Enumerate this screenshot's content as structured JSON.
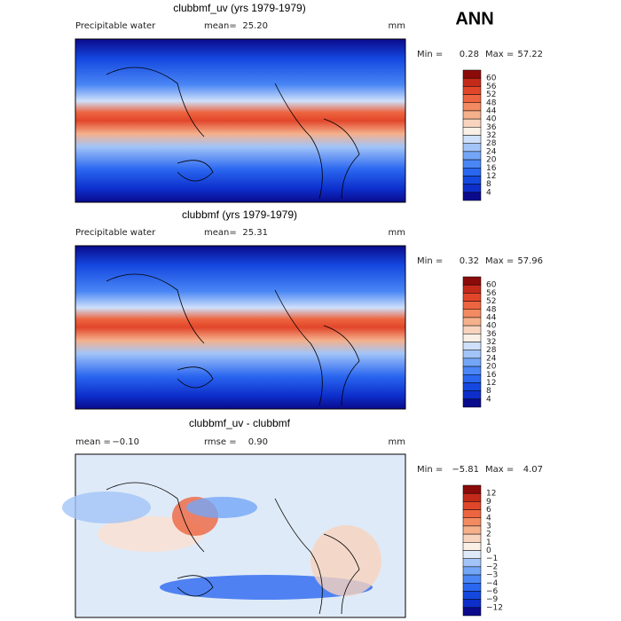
{
  "header": {
    "title": "ANN"
  },
  "panels": [
    {
      "title": "clubbmf_uv (yrs 1979-1979)",
      "left": "Precipitable water",
      "stats": [
        {
          "label": "mean=",
          "value": "25.20"
        }
      ],
      "units": "mm",
      "range": {
        "min_label": "Min =",
        "min": "0.28",
        "max_label": "Max =",
        "max": "57.22"
      },
      "colorbar": {
        "labels": [
          "60",
          "56",
          "52",
          "48",
          "44",
          "40",
          "36",
          "32",
          "28",
          "24",
          "20",
          "16",
          "12",
          "8",
          "4"
        ],
        "colors": [
          "#8b0a0a",
          "#c42a1a",
          "#e2462a",
          "#ed6540",
          "#f28a62",
          "#f5b08c",
          "#f8d3bd",
          "#fbf0e6",
          "#cfe0fa",
          "#a2c4f8",
          "#74a6f7",
          "#4a86f5",
          "#2a66f0",
          "#1448e0",
          "#0d2ecb",
          "#0a0a8c"
        ]
      }
    },
    {
      "title": "clubbmf (yrs 1979-1979)",
      "left": "Precipitable water",
      "stats": [
        {
          "label": "mean=",
          "value": "25.31"
        }
      ],
      "units": "mm",
      "range": {
        "min_label": "Min =",
        "min": "0.32",
        "max_label": "Max =",
        "max": "57.96"
      },
      "colorbar": {
        "labels": [
          "60",
          "56",
          "52",
          "48",
          "44",
          "40",
          "36",
          "32",
          "28",
          "24",
          "20",
          "16",
          "12",
          "8",
          "4"
        ],
        "colors": [
          "#8b0a0a",
          "#c42a1a",
          "#e2462a",
          "#ed6540",
          "#f28a62",
          "#f5b08c",
          "#f8d3bd",
          "#fbf0e6",
          "#cfe0fa",
          "#a2c4f8",
          "#74a6f7",
          "#4a86f5",
          "#2a66f0",
          "#1448e0",
          "#0d2ecb",
          "#0a0a8c"
        ]
      }
    },
    {
      "title": "clubbmf_uv - clubbmf",
      "stats": [
        {
          "label": "mean =",
          "value": "−0.10"
        },
        {
          "label": "rmse =",
          "value": "0.90"
        }
      ],
      "units": "mm",
      "range": {
        "min_label": "Min =",
        "min": "−5.81",
        "max_label": "Max =",
        "max": "4.07"
      },
      "colorbar": {
        "labels": [
          "12",
          "9",
          "6",
          "4",
          "3",
          "2",
          "1",
          "0",
          "−1",
          "−2",
          "−3",
          "−4",
          "−6",
          "−9",
          "−12"
        ],
        "colors": [
          "#8b0a0a",
          "#c42a1a",
          "#e2462a",
          "#ed6540",
          "#f28a62",
          "#f5b08c",
          "#f8d3bd",
          "#fbf0e6",
          "#dfeaf8",
          "#a2c4f8",
          "#74a6f7",
          "#4a86f5",
          "#2a66f0",
          "#1448e0",
          "#0d2ecb",
          "#0a0a8c"
        ]
      }
    }
  ]
}
